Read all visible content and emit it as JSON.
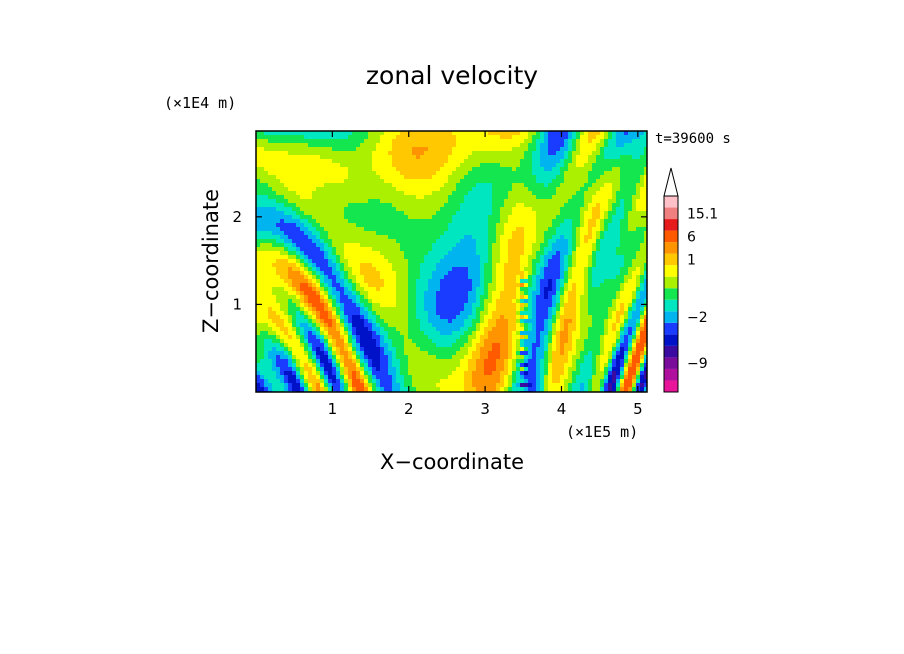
{
  "chart_data": {
    "type": "heatmap",
    "title": "zonal velocity",
    "xlabel": "X−coordinate",
    "ylabel": "Z−coordinate",
    "x_unit": "(×1E5 m)",
    "y_unit": "(×1E4 m)",
    "time_label": "t=39600 s",
    "x_ticks": [
      1,
      2,
      3,
      4,
      5
    ],
    "y_ticks": [
      1,
      2
    ],
    "xlim": [
      0,
      5.12
    ],
    "ylim": [
      0,
      2.98
    ],
    "grid": false,
    "colorbar": {
      "labels": [
        {
          "level": 7,
          "text": "15.1"
        },
        {
          "level": 5,
          "text": "6"
        },
        {
          "level": 3,
          "text": "1"
        },
        {
          "level": -2,
          "text": "−2"
        },
        {
          "level": -6,
          "text": "−9"
        }
      ],
      "bands": [
        {
          "level": -8,
          "color": "#e8149a"
        },
        {
          "level": -7,
          "color": "#b0109e"
        },
        {
          "level": -6,
          "color": "#7a0c9c"
        },
        {
          "level": -5,
          "color": "#3b0aa0"
        },
        {
          "level": -4,
          "color": "#0012c8"
        },
        {
          "level": -3,
          "color": "#1a3cff"
        },
        {
          "level": -2,
          "color": "#00b4f0"
        },
        {
          "level": -1,
          "color": "#00e6c0"
        },
        {
          "level": 0,
          "color": "#14e650"
        },
        {
          "level": 1,
          "color": "#aaf000"
        },
        {
          "level": 2,
          "color": "#ffff00"
        },
        {
          "level": 3,
          "color": "#ffc800"
        },
        {
          "level": 4,
          "color": "#ff9400"
        },
        {
          "level": 5,
          "color": "#ff5a00"
        },
        {
          "level": 6,
          "color": "#e61c1c"
        },
        {
          "level": 7,
          "color": "#f08080"
        },
        {
          "level": 8,
          "color": "#ffc0c8"
        }
      ]
    },
    "field_level_range": [
      -5,
      5
    ]
  }
}
